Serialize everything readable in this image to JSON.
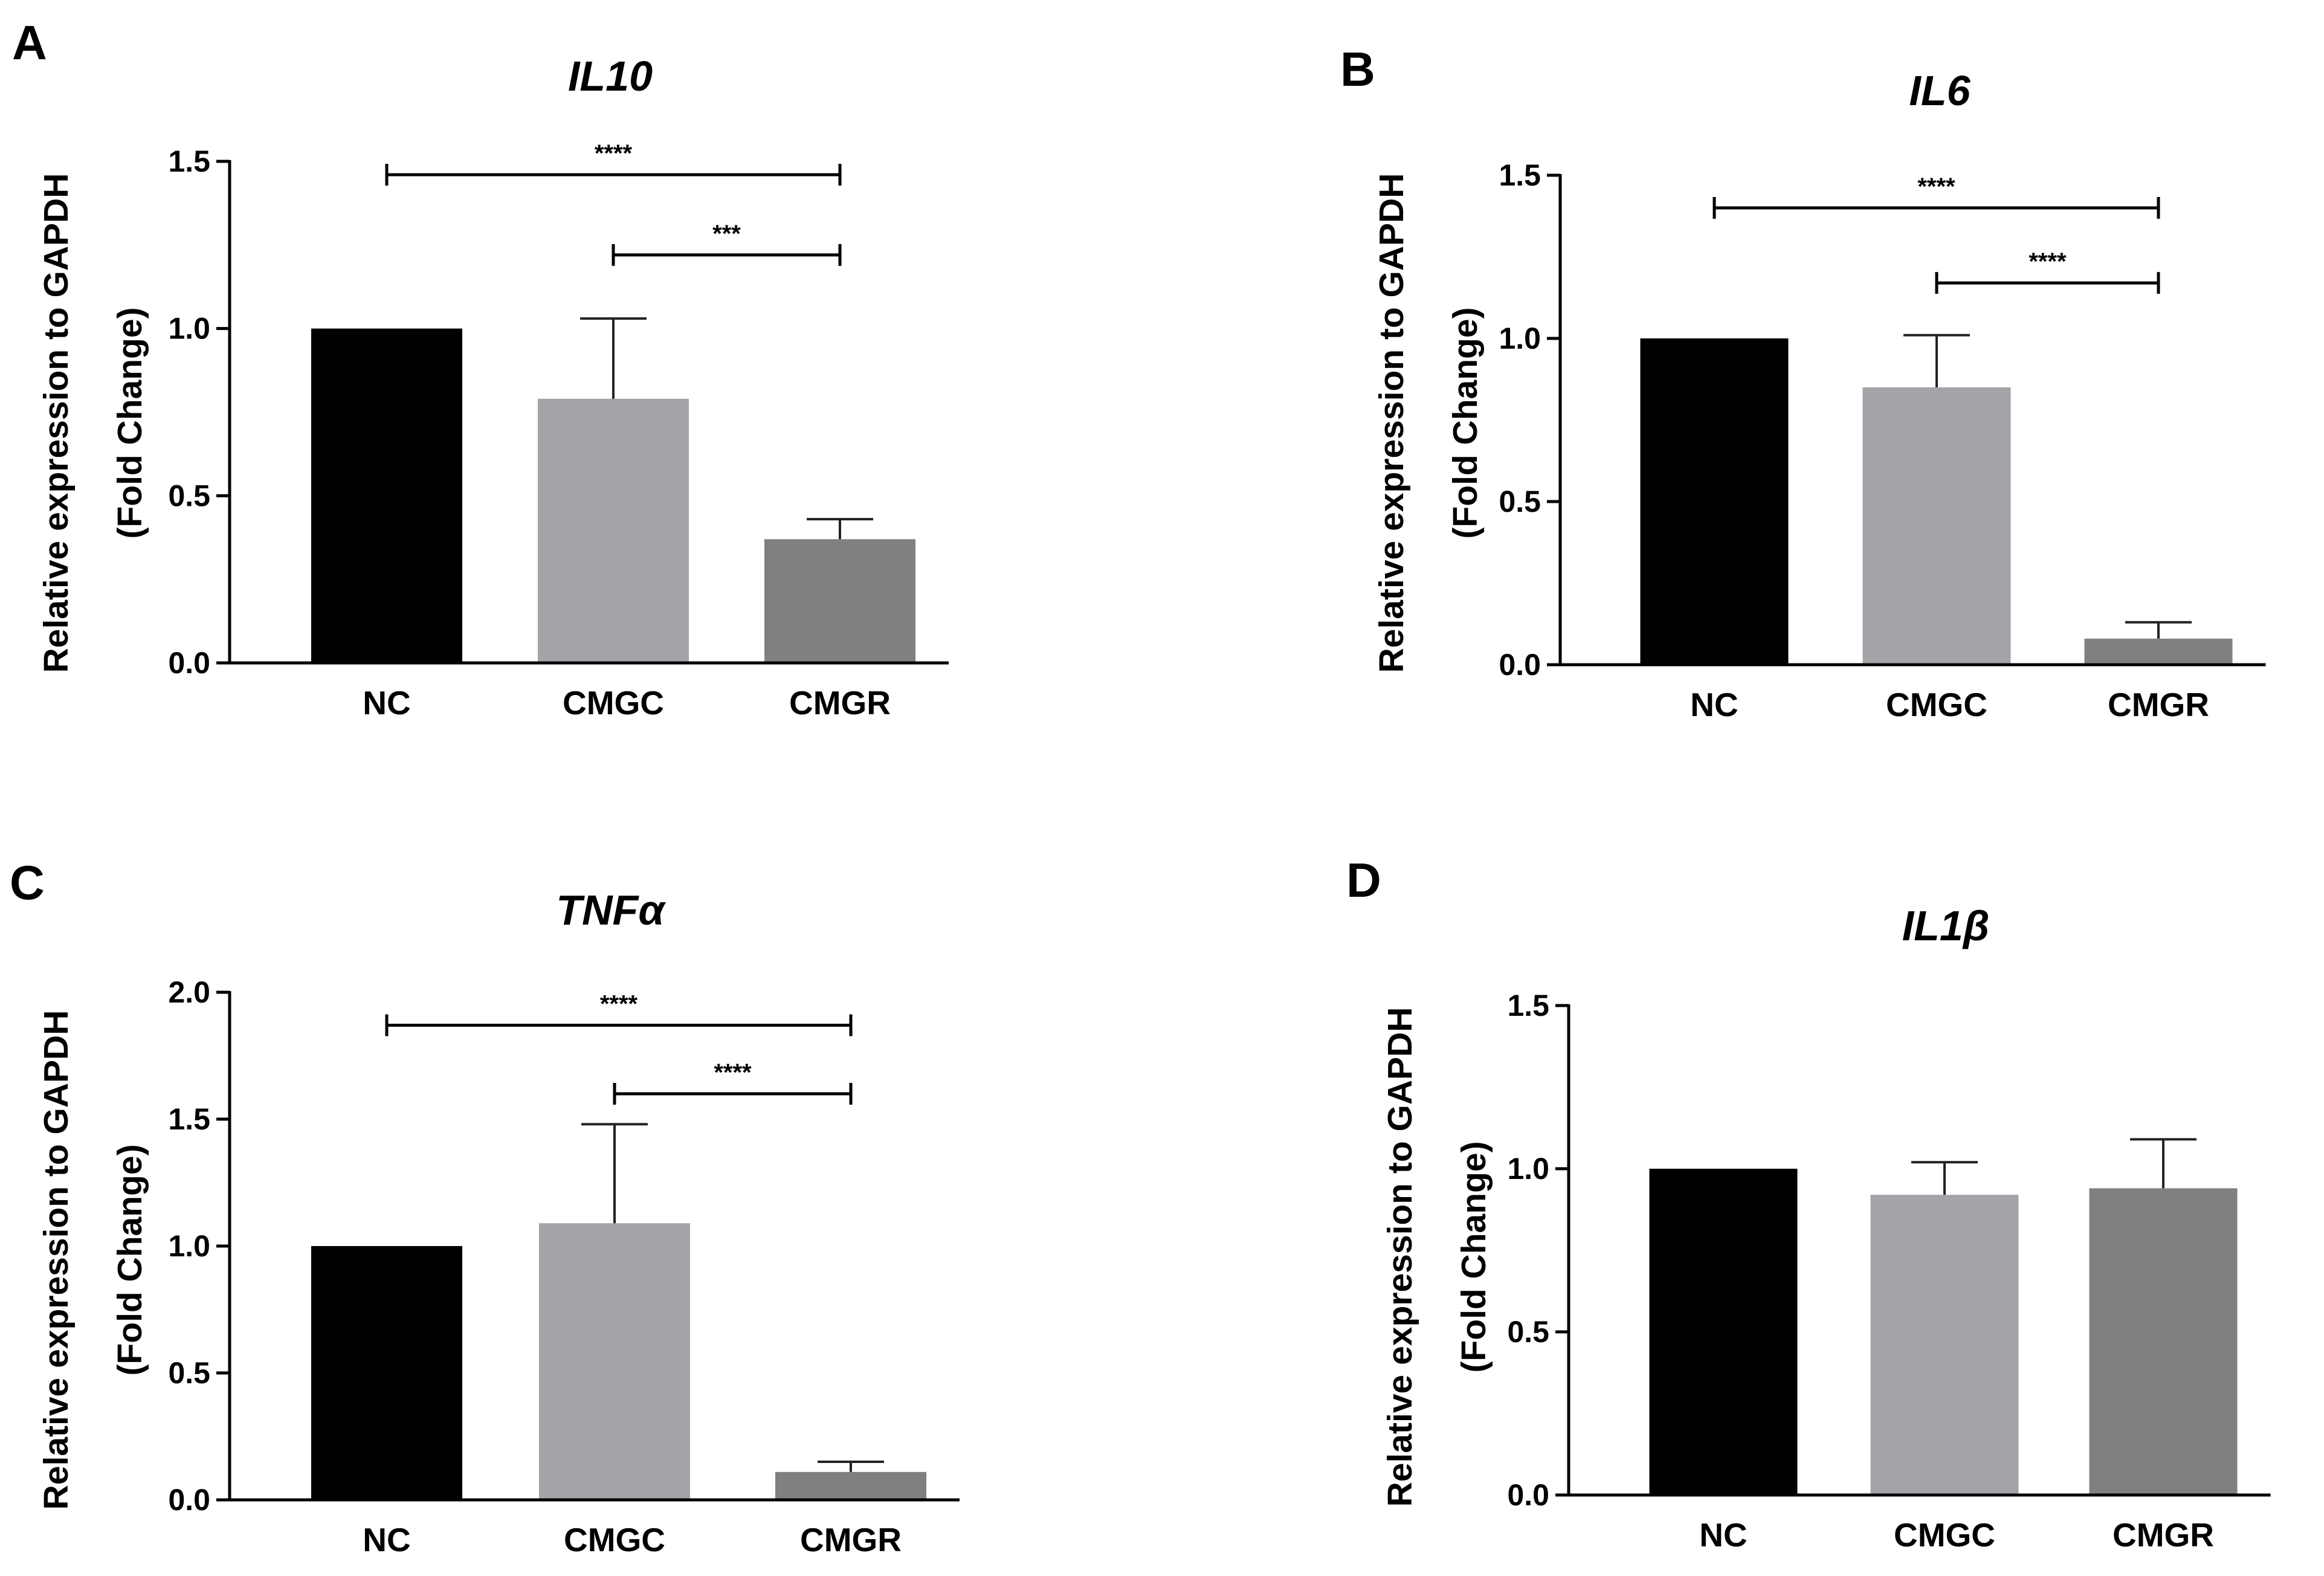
{
  "chart_data": [
    {
      "panel": "A",
      "type": "bar",
      "title": "IL10",
      "ylabel_line1": "Relative expression to GAPDH",
      "ylabel_line2": "(Fold Change)",
      "categories": [
        "NC",
        "CMGC",
        "CMGR"
      ],
      "values": [
        1.0,
        0.79,
        0.37
      ],
      "errors": [
        0,
        0.24,
        0.06
      ],
      "colors": [
        "#000000",
        "#a4a4a8",
        "#808080"
      ],
      "ylim": [
        0,
        1.5
      ],
      "yticks": [
        0.0,
        0.5,
        1.0,
        1.5
      ],
      "yticklabels": [
        "0.0",
        "0.5",
        "1.0",
        "1.5"
      ],
      "significance": [
        {
          "from": 0,
          "to": 2,
          "label": "****",
          "y": 1.46
        },
        {
          "from": 1,
          "to": 2,
          "label": "***",
          "y": 1.22
        }
      ]
    },
    {
      "panel": "B",
      "type": "bar",
      "title": "IL6",
      "ylabel_line1": "Relative expression to GAPDH",
      "ylabel_line2": "(Fold Change)",
      "categories": [
        "NC",
        "CMGC",
        "CMGR"
      ],
      "values": [
        1.0,
        0.85,
        0.08
      ],
      "errors": [
        0,
        0.16,
        0.05
      ],
      "colors": [
        "#000000",
        "#a4a4a8",
        "#808080"
      ],
      "ylim": [
        0,
        1.5
      ],
      "yticks": [
        0.0,
        0.5,
        1.0,
        1.5
      ],
      "yticklabels": [
        "0.0",
        "0.5",
        "1.0",
        "1.5"
      ],
      "significance": [
        {
          "from": 0,
          "to": 2,
          "label": "****",
          "y": 1.4
        },
        {
          "from": 1,
          "to": 2,
          "label": "****",
          "y": 1.17
        }
      ]
    },
    {
      "panel": "C",
      "type": "bar",
      "title": "TNFα",
      "ylabel_line1": "Relative expression to GAPDH",
      "ylabel_line2": "(Fold Change)",
      "categories": [
        "NC",
        "CMGC",
        "CMGR"
      ],
      "values": [
        1.0,
        1.09,
        0.11
      ],
      "errors": [
        0,
        0.39,
        0.04
      ],
      "colors": [
        "#000000",
        "#a4a4a8",
        "#808080"
      ],
      "ylim": [
        0,
        2.0
      ],
      "yticks": [
        0.0,
        0.5,
        1.0,
        1.5,
        2.0
      ],
      "yticklabels": [
        "0.0",
        "0.5",
        "1.0",
        "1.5",
        "2.0"
      ],
      "significance": [
        {
          "from": 0,
          "to": 2,
          "label": "****",
          "y": 1.87
        },
        {
          "from": 1,
          "to": 2,
          "label": "****",
          "y": 1.6
        }
      ]
    },
    {
      "panel": "D",
      "type": "bar",
      "title": "IL1β",
      "ylabel_line1": "Relative expression to GAPDH",
      "ylabel_line2": "(Fold Change)",
      "categories": [
        "NC",
        "CMGC",
        "CMGR"
      ],
      "values": [
        1.0,
        0.92,
        0.94
      ],
      "errors": [
        0,
        0.1,
        0.15
      ],
      "colors": [
        "#000000",
        "#a4a4a8",
        "#808080"
      ],
      "ylim": [
        0,
        1.5
      ],
      "yticks": [
        0.0,
        0.5,
        1.0,
        1.5
      ],
      "yticklabels": [
        "0.0",
        "0.5",
        "1.0",
        "1.5"
      ],
      "significance": []
    }
  ]
}
